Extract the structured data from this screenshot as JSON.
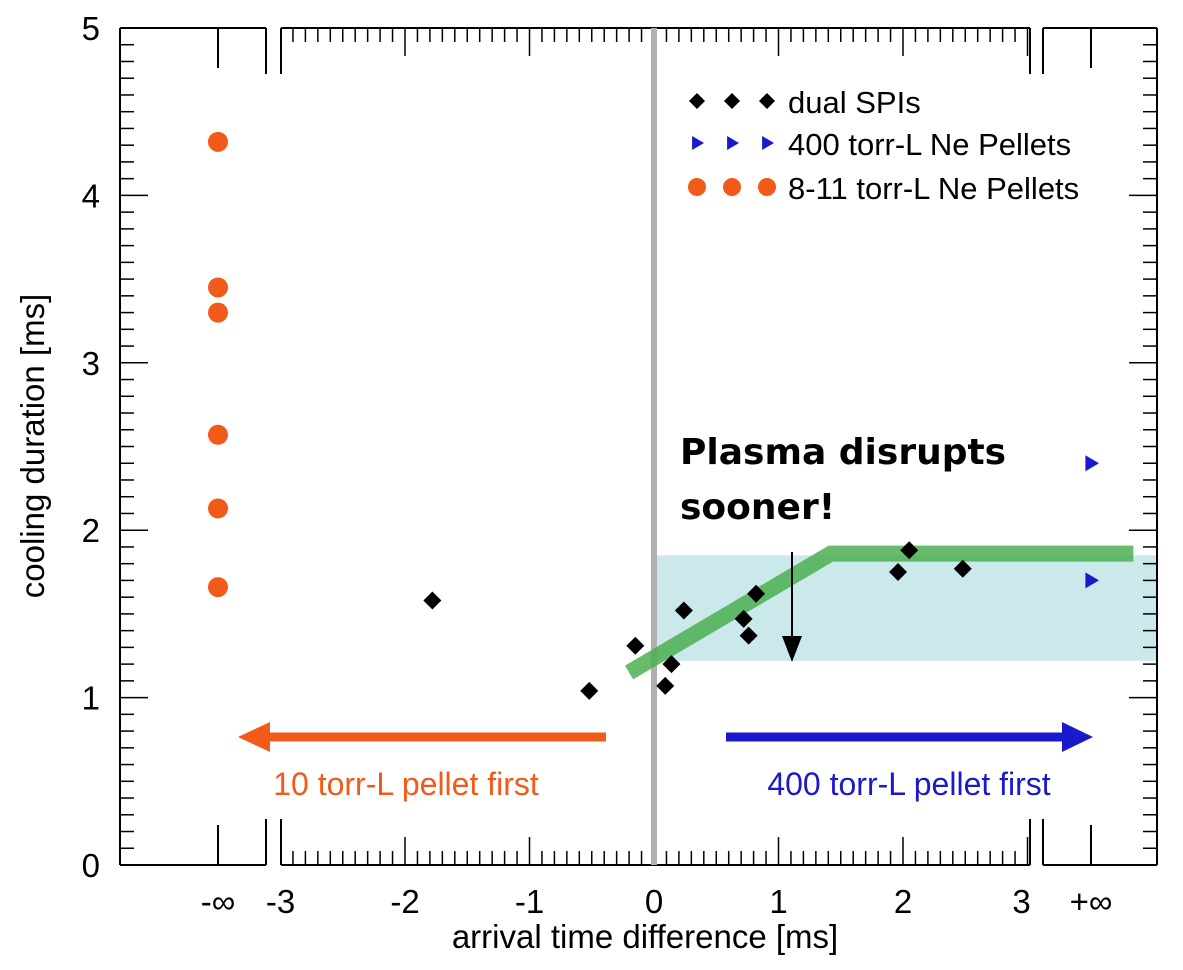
{
  "chart_data": {
    "type": "scatter",
    "title": "",
    "xlabel": "arrival time difference [ms]",
    "ylabel": "cooling duration [ms]",
    "xlim": [
      -3,
      3
    ],
    "ylim": [
      0,
      5
    ],
    "x_tick_labels": [
      "-∞",
      "-3",
      "-2",
      "-1",
      "0",
      "1",
      "2",
      "3",
      "+∞"
    ],
    "y_tick_labels": [
      "0",
      "1",
      "2",
      "3",
      "4",
      "5"
    ],
    "y_ticks": [
      0,
      1,
      2,
      3,
      4,
      5
    ],
    "x_ticks": [
      -3,
      -2,
      -1,
      0,
      1,
      2,
      3
    ],
    "legend_position": "top-right",
    "series": [
      {
        "name": "dual SPIs",
        "marker": "diamond",
        "color": "#000000",
        "points": [
          {
            "x": -1.78,
            "y": 1.58
          },
          {
            "x": -0.52,
            "y": 1.04
          },
          {
            "x": -0.15,
            "y": 1.31
          },
          {
            "x": 0.09,
            "y": 1.07
          },
          {
            "x": 0.14,
            "y": 1.2
          },
          {
            "x": 0.24,
            "y": 1.52
          },
          {
            "x": 0.72,
            "y": 1.47
          },
          {
            "x": 0.76,
            "y": 1.37
          },
          {
            "x": 0.82,
            "y": 1.62
          },
          {
            "x": 1.96,
            "y": 1.75
          },
          {
            "x": 2.05,
            "y": 1.88
          },
          {
            "x": 2.48,
            "y": 1.77
          }
        ]
      },
      {
        "name": "400  torr-L Ne Pellets",
        "marker": "triangle-right",
        "color": "#1a1acc",
        "at_x": "+∞",
        "values": [
          2.4,
          1.7
        ]
      },
      {
        "name": "8-11 torr-L Ne Pellets",
        "marker": "circle",
        "color": "#f25a1a",
        "at_x": "-∞",
        "values": [
          4.32,
          3.45,
          3.3,
          2.57,
          2.13,
          1.66
        ]
      }
    ],
    "trend_line": {
      "color": "#4caf50",
      "points": [
        {
          "x": -0.2,
          "y": 1.15
        },
        {
          "x": 1.42,
          "y": 1.86
        },
        {
          "x": 3.85,
          "y": 1.86
        }
      ]
    },
    "shaded_band": {
      "color": "#b9e0e4",
      "x_from": 0,
      "y_from": 1.22,
      "y_to": 1.85
    },
    "vertical_line": {
      "x": 0,
      "color": "#b0b0b0"
    },
    "annotations": {
      "disrupt_text": [
        "Plasma disrupts",
        "sooner!"
      ],
      "left_arrow_label": "10 torr-L pellet first",
      "right_arrow_label": "400  torr-L pellet first",
      "left_color": "#f25a1a",
      "right_color": "#1a1acc"
    }
  }
}
